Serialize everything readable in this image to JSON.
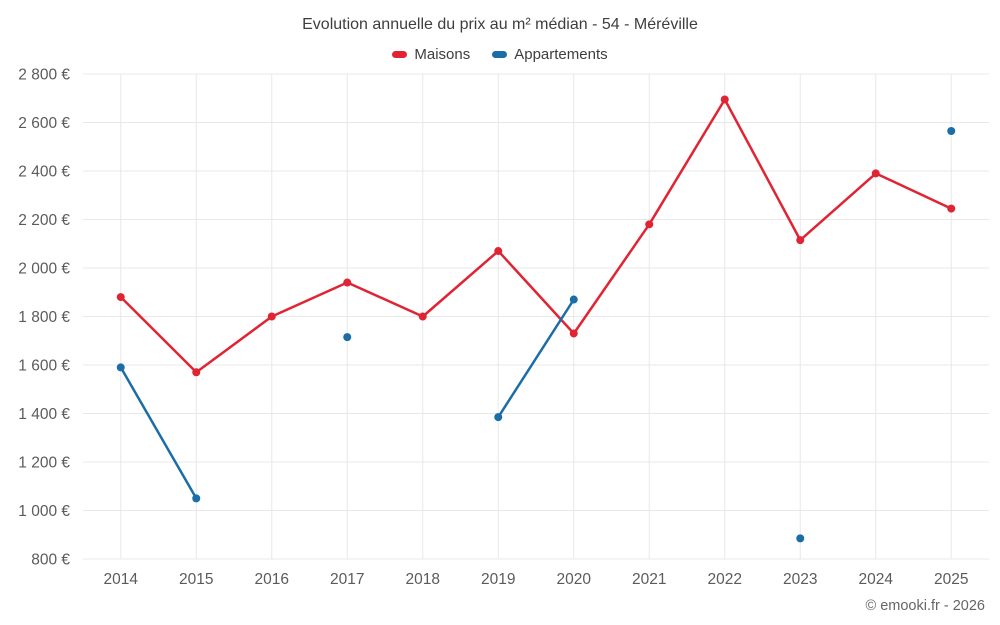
{
  "title": "Evolution annuelle du prix au m² médian - 54 - Méréville",
  "footer": "© emooki.fr - 2026",
  "legend": {
    "items": [
      {
        "label": "Maisons",
        "color": "#e02433"
      },
      {
        "label": "Appartements",
        "color": "#1a6da6"
      }
    ]
  },
  "chart_data": {
    "type": "line",
    "title": "Evolution annuelle du prix au m² médian - 54 - Méréville",
    "categories": [
      2014,
      2015,
      2016,
      2017,
      2018,
      2019,
      2020,
      2021,
      2022,
      2023,
      2024,
      2025
    ],
    "series": [
      {
        "name": "Maisons",
        "color": "#e02433",
        "values": [
          1880,
          1570,
          1800,
          1940,
          1800,
          2070,
          1730,
          2180,
          2695,
          2115,
          2390,
          2245
        ]
      },
      {
        "name": "Appartements",
        "color": "#1a6da6",
        "values": [
          1590,
          1050,
          null,
          1715,
          null,
          1385,
          1870,
          null,
          null,
          885,
          null,
          2565
        ]
      }
    ],
    "xlabel": "",
    "ylabel": "",
    "ylim": [
      800,
      2800
    ],
    "yticks": [
      800,
      1000,
      1200,
      1400,
      1600,
      1800,
      2000,
      2200,
      2400,
      2600,
      2800
    ],
    "ytick_suffix": " €",
    "grid": true,
    "legend_position": "top",
    "grid_color": "#e8e8e8"
  }
}
